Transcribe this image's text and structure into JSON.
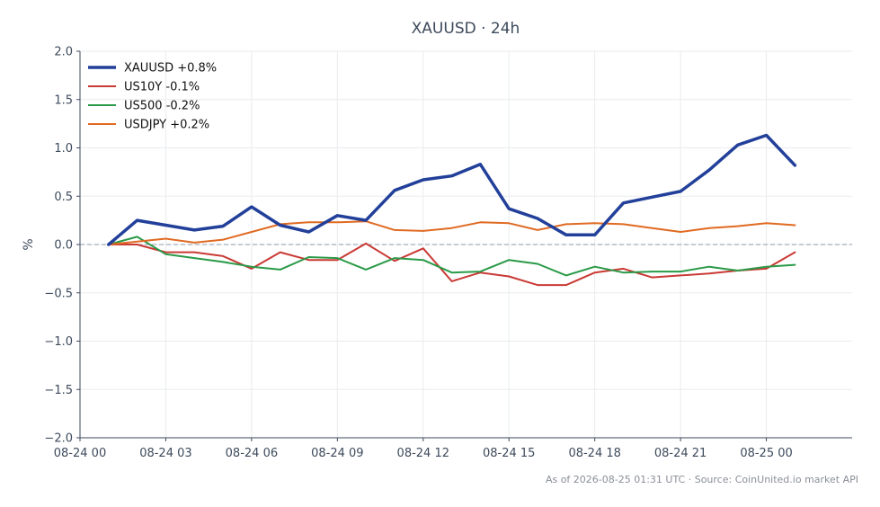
{
  "footer": "As of 2026-08-25 01:31 UTC · Source: CoinUnited.io market API",
  "chart_data": {
    "type": "line",
    "title": "XAUUSD · 24h",
    "xlabel": "",
    "ylabel": "%",
    "ylim": [
      -2.0,
      2.0
    ],
    "yticks": [
      "2.0",
      "1.5",
      "1.0",
      "0.5",
      "0.0",
      "−0.5",
      "−1.0",
      "−1.5",
      "−2.0"
    ],
    "ytick_values": [
      2.0,
      1.5,
      1.0,
      0.5,
      0.0,
      -0.5,
      -1.0,
      -1.5,
      -2.0
    ],
    "xlim": [
      "2026-08-24 00:00",
      "2026-08-25 03:00"
    ],
    "xticks": [
      "08-24 00",
      "08-24 03",
      "08-24 06",
      "08-24 09",
      "08-24 12",
      "08-24 15",
      "08-24 18",
      "08-24 21",
      "08-25 00"
    ],
    "grid": true,
    "legend_position": "top-left",
    "reference_line": 0.0,
    "x": [
      "2026-08-24 01:00",
      "2026-08-24 02:00",
      "2026-08-24 03:00",
      "2026-08-24 04:00",
      "2026-08-24 05:00",
      "2026-08-24 06:00",
      "2026-08-24 07:00",
      "2026-08-24 08:00",
      "2026-08-24 09:00",
      "2026-08-24 10:00",
      "2026-08-24 11:00",
      "2026-08-24 12:00",
      "2026-08-24 13:00",
      "2026-08-24 14:00",
      "2026-08-24 15:00",
      "2026-08-24 16:00",
      "2026-08-24 17:00",
      "2026-08-24 18:00",
      "2026-08-24 19:00",
      "2026-08-24 20:00",
      "2026-08-24 21:00",
      "2026-08-24 22:00",
      "2026-08-24 23:00",
      "2026-08-25 00:00",
      "2026-08-25 01:00"
    ],
    "series": [
      {
        "name": "XAUUSD +0.8%",
        "color": "#22409a",
        "width": 3.5,
        "values": [
          0.0,
          0.25,
          0.2,
          0.15,
          0.19,
          0.39,
          0.2,
          0.13,
          0.3,
          0.25,
          0.56,
          0.67,
          0.71,
          0.83,
          0.37,
          0.27,
          0.1,
          0.1,
          0.43,
          0.49,
          0.55,
          0.77,
          1.03,
          1.13,
          0.82
        ]
      },
      {
        "name": "US10Y -0.1%",
        "color": "#c93a35",
        "width": 2,
        "values": [
          0.0,
          0.0,
          -0.08,
          -0.08,
          -0.12,
          -0.25,
          -0.08,
          -0.16,
          -0.16,
          0.01,
          -0.17,
          -0.04,
          -0.38,
          -0.29,
          -0.33,
          -0.42,
          -0.42,
          -0.29,
          -0.25,
          -0.34,
          -0.32,
          -0.3,
          -0.27,
          -0.25,
          -0.08
        ]
      },
      {
        "name": "US500 -0.2%",
        "color": "#2a9a48",
        "width": 2,
        "values": [
          0.0,
          0.08,
          -0.1,
          -0.14,
          -0.18,
          -0.23,
          -0.26,
          -0.13,
          -0.14,
          -0.26,
          -0.14,
          -0.16,
          -0.29,
          -0.28,
          -0.16,
          -0.2,
          -0.32,
          -0.23,
          -0.29,
          -0.28,
          -0.28,
          -0.23,
          -0.27,
          -0.23,
          -0.21
        ]
      },
      {
        "name": "USDJPY +0.2%",
        "color": "#e06a22",
        "width": 2,
        "values": [
          0.0,
          0.03,
          0.06,
          0.02,
          0.05,
          0.13,
          0.21,
          0.23,
          0.23,
          0.24,
          0.15,
          0.14,
          0.17,
          0.23,
          0.22,
          0.15,
          0.21,
          0.22,
          0.21,
          0.17,
          0.13,
          0.17,
          0.19,
          0.22,
          0.2
        ]
      }
    ]
  }
}
